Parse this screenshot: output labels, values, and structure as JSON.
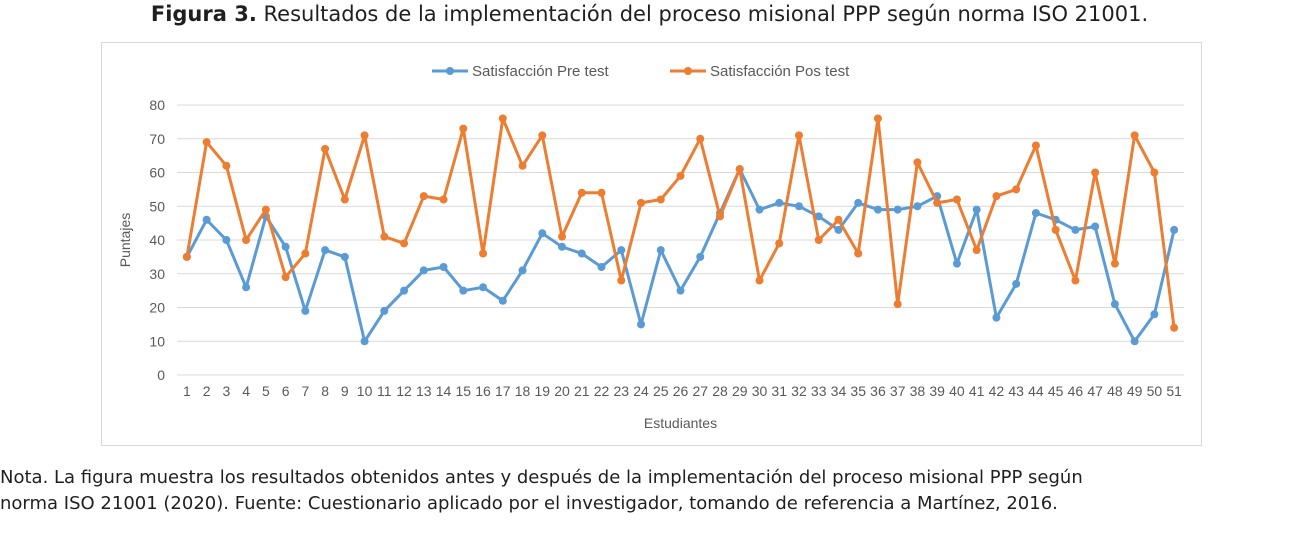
{
  "figure": {
    "label": "Figura 3.",
    "caption": "Resultados de la implementación del proceso misional PPP según norma ISO 21001."
  },
  "note": {
    "line1": "Nota. La figura muestra los resultados obtenidos antes y después de la implementación del proceso misional PPP según",
    "line2": "norma ISO 21001 (2020). Fuente: Cuestionario aplicado por el investigador, tomando de referencia a Martínez, 2016."
  },
  "colors": {
    "pre": "#5b9bd5",
    "pos": "#ed7d31",
    "grid": "#d9d9d9",
    "text": "#595959"
  },
  "chart_data": {
    "type": "line",
    "title": "",
    "xlabel": "Estudiantes",
    "ylabel": "Puntajes",
    "ylim": [
      0,
      80
    ],
    "yticks": [
      0,
      10,
      20,
      30,
      40,
      50,
      60,
      70,
      80
    ],
    "grid": true,
    "legend_position": "top",
    "categories": [
      "1",
      "2",
      "3",
      "4",
      "5",
      "6",
      "7",
      "8",
      "9",
      "10",
      "11",
      "12",
      "13",
      "14",
      "15",
      "16",
      "17",
      "18",
      "19",
      "20",
      "21",
      "22",
      "23",
      "24",
      "25",
      "26",
      "27",
      "28",
      "29",
      "30",
      "31",
      "32",
      "33",
      "34",
      "35",
      "36",
      "37",
      "38",
      "39",
      "40",
      "41",
      "42",
      "43",
      "44",
      "45",
      "46",
      "47",
      "48",
      "49",
      "50",
      "51"
    ],
    "series": [
      {
        "name": "Satisfacción Pre test",
        "values": [
          35,
          46,
          40,
          26,
          47,
          38,
          19,
          37,
          35,
          10,
          19,
          25,
          31,
          32,
          25,
          26,
          22,
          31,
          42,
          38,
          36,
          32,
          37,
          15,
          37,
          25,
          35,
          48,
          61,
          49,
          51,
          50,
          47,
          43,
          51,
          49,
          49,
          50,
          53,
          33,
          49,
          17,
          27,
          48,
          46,
          43,
          44,
          21,
          10,
          18,
          43
        ]
      },
      {
        "name": "Satisfacción Pos test",
        "values": [
          35,
          69,
          62,
          40,
          49,
          29,
          36,
          67,
          52,
          71,
          41,
          39,
          53,
          52,
          73,
          36,
          76,
          62,
          71,
          41,
          54,
          54,
          28,
          51,
          52,
          59,
          70,
          47,
          61,
          28,
          39,
          71,
          40,
          46,
          36,
          76,
          21,
          63,
          51,
          52,
          37,
          53,
          55,
          68,
          43,
          28,
          60,
          33,
          71,
          60,
          14
        ]
      }
    ]
  }
}
